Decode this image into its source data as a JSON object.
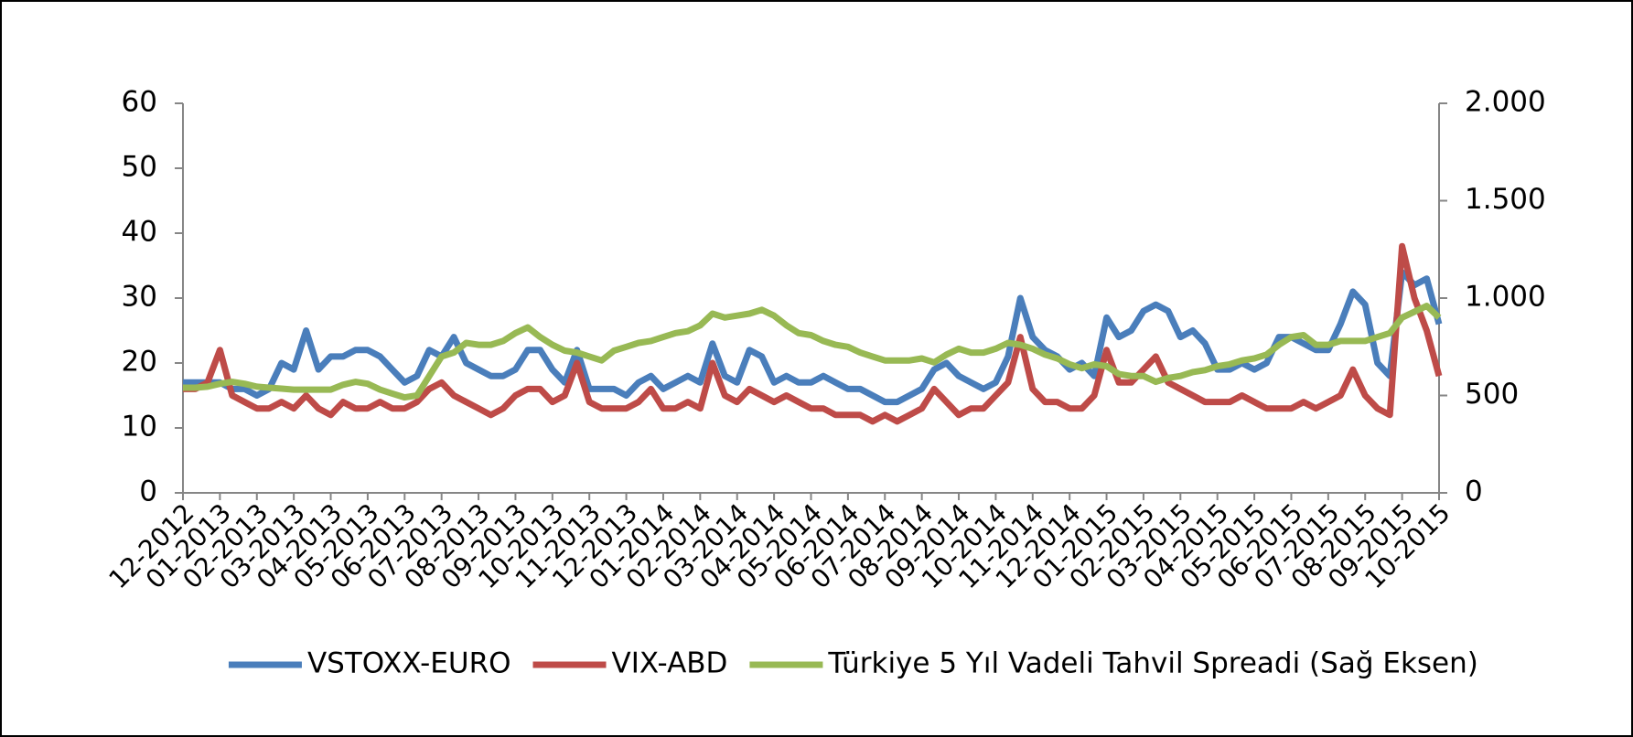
{
  "chart_data": {
    "type": "line",
    "categories": [
      "12-2012",
      null,
      null,
      "01-2013",
      null,
      null,
      "02-2013",
      null,
      null,
      "03-2013",
      null,
      null,
      "04-2013",
      null,
      null,
      "05-2013",
      null,
      null,
      "06-2013",
      null,
      null,
      "07-2013",
      null,
      null,
      "08-2013",
      null,
      null,
      "09-2013",
      null,
      null,
      "10-2013",
      null,
      null,
      "11-2013",
      null,
      null,
      "12-2013",
      null,
      null,
      "01-2014",
      null,
      null,
      "02-2014",
      null,
      null,
      "03-2014",
      null,
      null,
      "04-2014",
      null,
      null,
      "05-2014",
      null,
      null,
      "06-2014",
      null,
      null,
      "07-2014",
      null,
      null,
      "08-2014",
      null,
      null,
      "09-2014",
      null,
      null,
      "10-2014",
      null,
      null,
      "11-2014",
      null,
      null,
      "12-2014",
      null,
      null,
      "01-2015",
      null,
      null,
      "02-2015",
      null,
      null,
      "03-2015",
      null,
      null,
      "04-2015",
      null,
      null,
      "05-2015",
      null,
      null,
      "06-2015",
      null,
      null,
      "07-2015",
      null,
      null,
      "08-2015",
      null,
      null,
      "09-2015",
      null,
      null,
      "10-2015"
    ],
    "series": [
      {
        "name": "VSTOXX-EURO",
        "color": "#4a7ebb",
        "values": [
          17,
          17,
          17,
          17,
          16,
          16,
          15,
          16,
          20,
          19,
          25,
          19,
          21,
          21,
          22,
          22,
          21,
          19,
          17,
          18,
          22,
          21,
          24,
          20,
          19,
          18,
          18,
          19,
          22,
          22,
          19,
          17,
          22,
          16,
          16,
          16,
          15,
          17,
          18,
          16,
          17,
          18,
          17,
          23,
          18,
          17,
          22,
          21,
          17,
          18,
          17,
          17,
          18,
          17,
          16,
          16,
          15,
          14,
          14,
          15,
          16,
          19,
          20,
          18,
          17,
          16,
          17,
          21,
          30,
          24,
          22,
          21,
          19,
          20,
          18,
          27,
          24,
          25,
          28,
          29,
          28,
          24,
          25,
          23,
          19,
          19,
          20,
          19,
          20,
          24,
          24,
          23,
          22,
          22,
          26,
          31,
          29,
          20,
          18,
          34,
          32,
          33,
          26
        ]
      },
      {
        "name": "VIX-ABD",
        "color": "#be4b48",
        "values": [
          16,
          16,
          17,
          22,
          15,
          14,
          13,
          13,
          14,
          13,
          15,
          13,
          12,
          14,
          13,
          13,
          14,
          13,
          13,
          14,
          16,
          17,
          15,
          14,
          13,
          12,
          13,
          15,
          16,
          16,
          14,
          15,
          20,
          14,
          13,
          13,
          13,
          14,
          16,
          13,
          13,
          14,
          13,
          20,
          15,
          14,
          16,
          15,
          14,
          15,
          14,
          13,
          13,
          12,
          12,
          12,
          11,
          12,
          11,
          12,
          13,
          16,
          14,
          12,
          13,
          13,
          15,
          17,
          24,
          16,
          14,
          14,
          13,
          13,
          15,
          22,
          17,
          17,
          19,
          21,
          17,
          16,
          15,
          14,
          14,
          14,
          15,
          14,
          13,
          13,
          13,
          14,
          13,
          14,
          15,
          19,
          15,
          13,
          12,
          38,
          30,
          25,
          18
        ]
      },
      {
        "name": "Türkiye 5 Yıl Vadeli Tahvil Spreadi (Sağ Eksen)",
        "color": "#98b954",
        "axis": "y2",
        "values": [
          540,
          540,
          545,
          560,
          570,
          560,
          545,
          540,
          535,
          530,
          530,
          530,
          530,
          555,
          570,
          560,
          530,
          510,
          490,
          500,
          600,
          700,
          720,
          770,
          760,
          760,
          780,
          820,
          850,
          800,
          760,
          730,
          720,
          700,
          680,
          730,
          750,
          770,
          780,
          800,
          820,
          830,
          860,
          920,
          900,
          910,
          920,
          940,
          910,
          860,
          820,
          810,
          780,
          760,
          750,
          720,
          700,
          680,
          680,
          680,
          690,
          670,
          710,
          740,
          720,
          720,
          740,
          770,
          760,
          740,
          710,
          690,
          660,
          640,
          660,
          650,
          610,
          600,
          600,
          570,
          590,
          600,
          620,
          630,
          650,
          660,
          680,
          690,
          710,
          760,
          800,
          810,
          760,
          760,
          780,
          780,
          780,
          800,
          820,
          900,
          930,
          960,
          900
        ]
      }
    ],
    "ylim": [
      0,
      60
    ],
    "yticks": [
      0,
      10,
      20,
      30,
      40,
      50,
      60
    ],
    "y2lim": [
      0,
      2000
    ],
    "y2ticks": [
      0,
      500,
      {
        "value": 1000,
        "label": "1.000"
      },
      {
        "value": 1500,
        "label": "1.500"
      },
      {
        "value": 2000,
        "label": "2.000"
      }
    ],
    "legend": "bottom"
  }
}
